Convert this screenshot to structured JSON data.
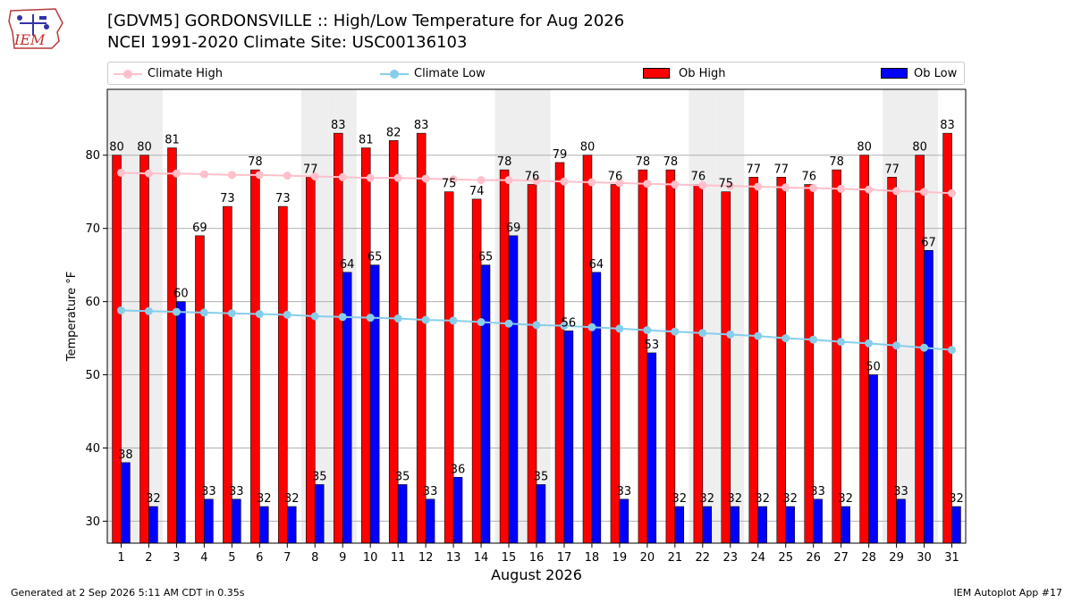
{
  "header": {
    "logo_text": "IEM",
    "title_line1": "[GDVM5] GORDONSVILLE :: High/Low Temperature for Aug 2026",
    "title_line2": "NCEI 1991-2020 Climate Site: USC00136103"
  },
  "legend": {
    "climate_high": "Climate High",
    "climate_low": "Climate Low",
    "ob_high": "Ob High",
    "ob_low": "Ob Low"
  },
  "footer": {
    "generated": "Generated at 2 Sep 2026 5:11 AM CDT in 0.35s",
    "app": "IEM Autoplot App #17"
  },
  "colors": {
    "ob_high": "#ff0000",
    "ob_low": "#0000ff",
    "climate_high": "#ffc0cb",
    "climate_low": "#87ceeb",
    "weekend_shade": "#eeeeee"
  },
  "chart_data": {
    "type": "bar",
    "xlabel": "August 2026",
    "ylabel": "Temperature °F",
    "ylim": [
      27,
      89
    ],
    "yticks": [
      30,
      40,
      50,
      60,
      70,
      80
    ],
    "grid": true,
    "legend_position": "top",
    "categories": [
      1,
      2,
      3,
      4,
      5,
      6,
      7,
      8,
      9,
      10,
      11,
      12,
      13,
      14,
      15,
      16,
      17,
      18,
      19,
      20,
      21,
      22,
      23,
      24,
      25,
      26,
      27,
      28,
      29,
      30,
      31
    ],
    "shaded_days": [
      1,
      2,
      8,
      9,
      15,
      16,
      22,
      23,
      29,
      30
    ],
    "series": [
      {
        "name": "Ob High",
        "type": "bar",
        "values": [
          80,
          80,
          81,
          69,
          73,
          78,
          73,
          77,
          83,
          81,
          82,
          83,
          75,
          74,
          78,
          76,
          79,
          80,
          76,
          78,
          78,
          76,
          75,
          77,
          77,
          76,
          78,
          80,
          77,
          80,
          83
        ]
      },
      {
        "name": "Ob Low",
        "type": "bar",
        "values": [
          38,
          32,
          60,
          33,
          33,
          32,
          32,
          35,
          64,
          65,
          35,
          33,
          36,
          65,
          69,
          35,
          56,
          64,
          33,
          53,
          32,
          32,
          32,
          32,
          32,
          33,
          32,
          50,
          33,
          67,
          32
        ]
      },
      {
        "name": "Climate High",
        "type": "line",
        "values": [
          77.6,
          77.5,
          77.5,
          77.4,
          77.3,
          77.3,
          77.2,
          77.1,
          77.0,
          76.9,
          76.9,
          76.8,
          76.7,
          76.6,
          76.6,
          76.5,
          76.4,
          76.3,
          76.2,
          76.1,
          76.0,
          75.9,
          75.8,
          75.7,
          75.6,
          75.5,
          75.4,
          75.3,
          75.1,
          75.0,
          74.8
        ]
      },
      {
        "name": "Climate Low",
        "type": "line",
        "values": [
          58.8,
          58.7,
          58.6,
          58.5,
          58.4,
          58.3,
          58.2,
          58.0,
          57.9,
          57.8,
          57.7,
          57.5,
          57.4,
          57.2,
          57.0,
          56.8,
          56.7,
          56.5,
          56.3,
          56.1,
          55.9,
          55.7,
          55.5,
          55.3,
          55.0,
          54.8,
          54.5,
          54.3,
          54.0,
          53.7,
          53.4
        ]
      }
    ]
  }
}
